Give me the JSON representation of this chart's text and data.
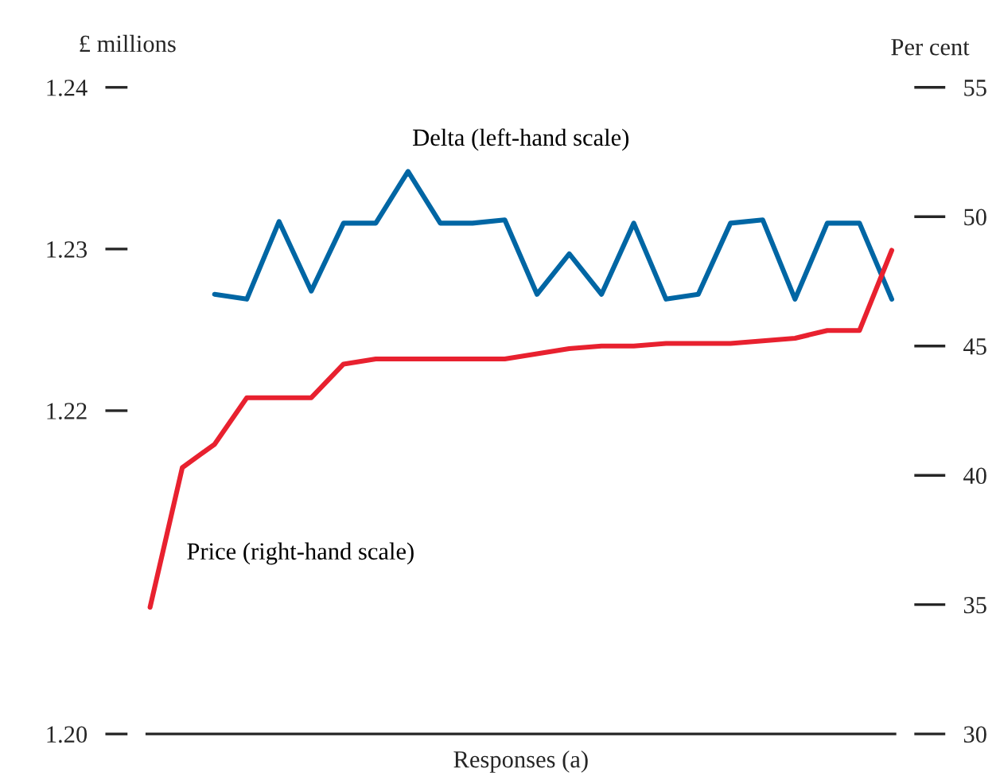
{
  "chart_data": {
    "type": "line",
    "xlabel": "Responses (a)",
    "ylabel": "£ millions",
    "y2label": "Per cent",
    "categories": [
      null,
      null,
      null,
      null,
      null,
      null,
      null,
      null,
      null,
      null,
      null,
      null,
      null,
      null,
      null,
      null,
      null,
      null,
      null,
      null,
      null,
      null,
      null,
      null
    ],
    "series": [
      {
        "name": "Delta (left-hand scale)",
        "color": "#0066a4",
        "values": [
          null,
          null,
          1.2272,
          1.2269,
          1.2317,
          1.2274,
          1.2316,
          1.2316,
          1.2348,
          1.2316,
          1.2316,
          1.2318,
          1.2272,
          1.2297,
          1.2272,
          1.2316,
          1.2269,
          1.2272,
          1.2316,
          1.2318,
          1.2269,
          1.2316,
          1.2316,
          1.2269
        ]
      },
      {
        "name": "Price (right-hand scale)",
        "color": "#e8212f",
        "axis": "y2",
        "values": [
          34.9,
          40.3,
          41.2,
          43.0,
          43.0,
          43.0,
          44.3,
          44.5,
          44.5,
          44.5,
          44.5,
          44.5,
          44.7,
          44.9,
          45.0,
          45.0,
          45.1,
          45.1,
          45.1,
          45.2,
          45.3,
          45.6,
          45.6,
          48.7
        ]
      }
    ],
    "ylim": [
      1.2,
      1.24
    ],
    "yticks": [
      {
        "value": 1.2,
        "label": "1.20"
      },
      1.22,
      1.23,
      1.24
    ],
    "y2lim": [
      30,
      55
    ],
    "y2ticks": [
      30,
      35,
      40,
      45,
      50,
      55
    ],
    "tick_labels": "y",
    "grid": false,
    "legend": false,
    "marker": "none",
    "line_style": "solid"
  }
}
